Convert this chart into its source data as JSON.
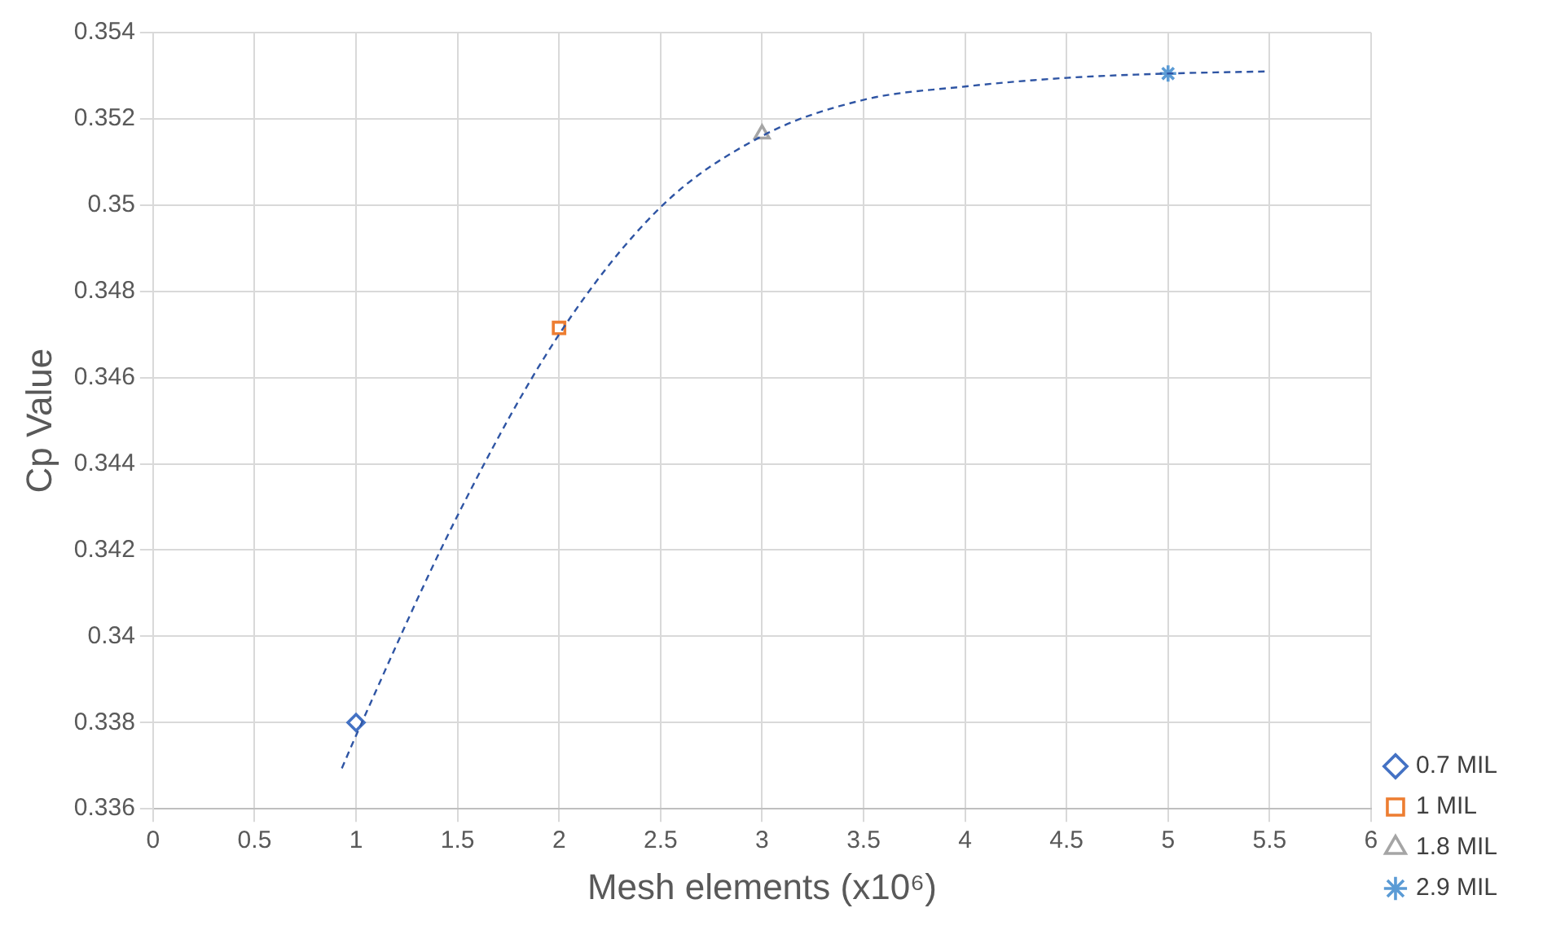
{
  "chart_data": {
    "type": "scatter",
    "xlabel": "Mesh elements (x10⁶)",
    "ylabel": "Cp Value",
    "xlim": [
      0,
      6
    ],
    "xticks": [
      0,
      0.5,
      1,
      1.5,
      2,
      2.5,
      3,
      3.5,
      4,
      4.5,
      5,
      5.5,
      6
    ],
    "ylim": [
      0.336,
      0.354
    ],
    "yticks": [
      0.336,
      0.338,
      0.34,
      0.342,
      0.344,
      0.346,
      0.348,
      0.35,
      0.352,
      0.354
    ],
    "grid": true,
    "legend": "right",
    "series": [
      {
        "type": "line",
        "color": "#2f55a4",
        "line_style": "dashed",
        "marker": "none",
        "x": [
          0.93,
          1,
          1.5,
          2,
          2.5,
          3,
          3.5,
          4,
          4.5,
          5,
          5.5
        ],
        "values": [
          0.33694,
          0.3377,
          0.3428,
          0.347,
          0.34995,
          0.3516,
          0.35244,
          0.35275,
          0.35295,
          0.35305,
          0.3531
        ]
      },
      {
        "name": "0.7 MIL",
        "color": "#4472c4",
        "marker": "diamond",
        "x": [
          1
        ],
        "values": [
          0.338
        ]
      },
      {
        "name": "1 MIL",
        "color": "#ed7d31",
        "marker": "square",
        "x": [
          2
        ],
        "values": [
          0.34715
        ]
      },
      {
        "name": "1.8 MIL",
        "color": "#a5a5a5",
        "marker": "triangle",
        "x": [
          3
        ],
        "values": [
          0.35165
        ]
      },
      {
        "name": "2.9 MIL",
        "color": "#5b9bd5",
        "marker": "cross",
        "x": [
          5
        ],
        "values": [
          0.35305
        ]
      }
    ]
  }
}
